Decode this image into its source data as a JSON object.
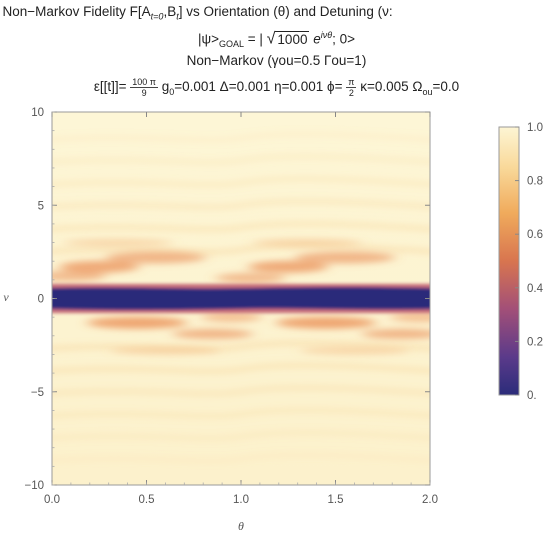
{
  "title": {
    "line1": "x Non−Markov Fidelity F[A",
    "line1_sub1": "t=0",
    "line1_mid": ",B",
    "line1_sub2": "t",
    "line1_tail": "] vs Orientation (θ) and Detuning (ν:",
    "line2_prefix": "|ψ>",
    "line2_sub": "GOAL",
    "line2_mid": " = | ",
    "line2_sqrt": "1000",
    "line2_exp_base": " e",
    "line2_exp": "iνθ",
    "line2_tail": "; 0>",
    "line3": "Non−Markov (γou=0.5 Γou=1)",
    "line4_a": "ε[[t]]= ",
    "line4_frac1_num": "100 π",
    "line4_frac1_den": "9",
    "line4_b": " g",
    "line4_b_sub": "0",
    "line4_c": "=0.001 Δ=0.001 η=0.001 ϕ= ",
    "line4_frac2_num": "π",
    "line4_frac2_den": "2",
    "line4_d": " κ=0.005 Ω",
    "line4_d_sub": "ou",
    "line4_e": "=0.0"
  },
  "chart_data": {
    "type": "heatmap",
    "xlabel": "θ",
    "ylabel": "ν",
    "xlim": [
      0,
      2
    ],
    "ylim": [
      -10,
      10
    ],
    "x_ticks": [
      "0.0",
      "0.5",
      "1.0",
      "1.5",
      "2.0"
    ],
    "x_tick_values": [
      0,
      0.5,
      1,
      1.5,
      2
    ],
    "y_ticks": [
      "10",
      "5",
      "0",
      "−5",
      "−10"
    ],
    "y_tick_values": [
      10,
      5,
      0,
      -5,
      -10
    ],
    "color_scale": {
      "min": 0,
      "max": 1,
      "ticks": [
        "1.0",
        "0.8",
        "0.6",
        "0.4",
        "0.2",
        "0."
      ],
      "tick_values": [
        1,
        0.8,
        0.6,
        0.4,
        0.2,
        0
      ],
      "colors": [
        "#2b2c7a",
        "#6b3f8e",
        "#b5536f",
        "#e0814f",
        "#f2b969",
        "#fbe4ad",
        "#fdf5d4"
      ]
    },
    "features": [
      {
        "description": "low-fidelity band",
        "y_range": [
          -0.6,
          0.6
        ],
        "value": 0.0
      },
      {
        "description": "fidelity elsewhere",
        "value": 0.95
      },
      {
        "description": "fidelity dips near band",
        "y": [
          1.3,
          -1.3
        ],
        "value": 0.55
      }
    ]
  }
}
